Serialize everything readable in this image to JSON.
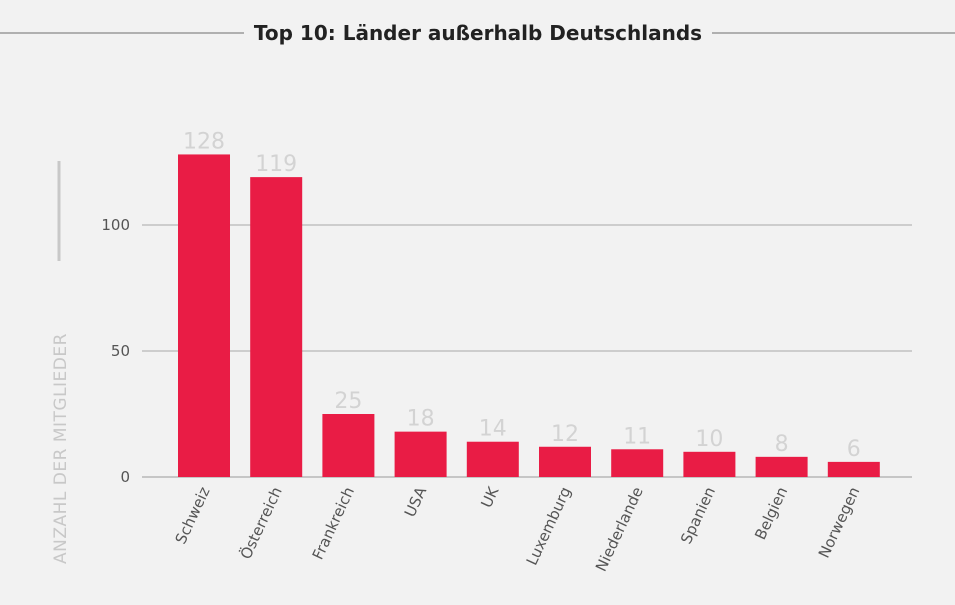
{
  "chart_data": {
    "type": "bar",
    "title": "Top 10: Länder außerhalb Deutschlands",
    "xlabel": "",
    "ylabel": "ANZAHL DER MITGLIEDER",
    "categories": [
      "Schweiz",
      "Österreich",
      "Frankreich",
      "USA",
      "UK",
      "Luxemburg",
      "Niederlande",
      "Spanien",
      "Belgien",
      "Norwegen"
    ],
    "values": [
      128,
      119,
      25,
      18,
      14,
      12,
      11,
      10,
      8,
      6
    ],
    "value_labels": [
      "128",
      "119",
      "25",
      "18",
      "14",
      "12",
      "11",
      "10",
      "8",
      "6"
    ],
    "yticks": [
      0,
      50,
      100
    ],
    "ytick_labels": [
      "0",
      "50",
      "100"
    ],
    "ylim": [
      0,
      128
    ],
    "grid": true,
    "legend": "none",
    "colors": {
      "bar": "#e91c45",
      "gridline": "#9a9a9a",
      "value_label": "#d3d3d3",
      "title": "#222222"
    }
  }
}
